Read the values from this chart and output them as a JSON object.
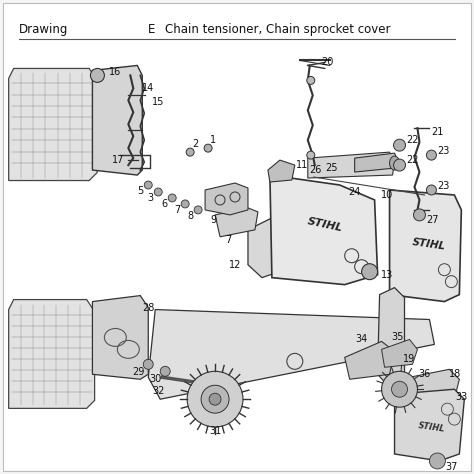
{
  "title_left": "Drawing",
  "title_mid": "E",
  "title_right": "Chain tensioner, Chain sprocket cover",
  "bg_color": "#f5f5f5",
  "page_bg": "#ffffff",
  "border_color": "#999999",
  "text_color": "#111111",
  "title_fontsize": 8.5,
  "figsize": [
    4.74,
    4.74
  ],
  "dpi": 100,
  "line_color": "#aaaaaa"
}
